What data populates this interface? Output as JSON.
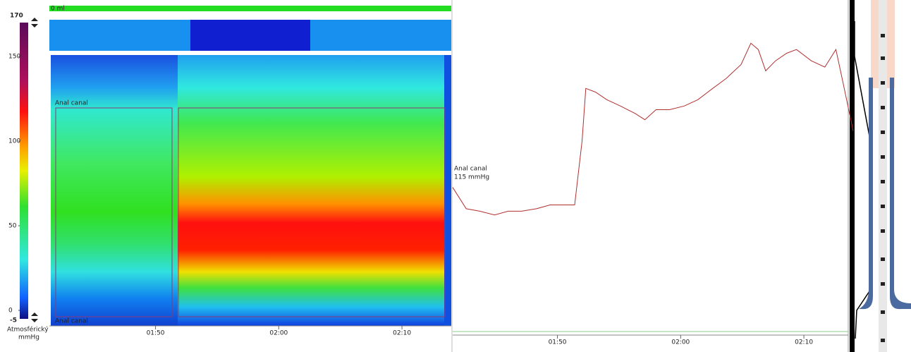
{
  "volume_label": "0 ml",
  "colorbar": {
    "max": 170,
    "min": -5,
    "ticks": [
      0,
      50,
      100,
      150
    ],
    "unit_labels": [
      "Atmosférický",
      "mmHg"
    ]
  },
  "heatmap": {
    "region_labels": [
      "Anal canal",
      "Anal canal"
    ]
  },
  "cursor_labels": [
    "Anal canal",
    "115 mmHg"
  ],
  "chart_data": {
    "type": "line",
    "color": "#b03030",
    "x": [
      101.5,
      102.6,
      103.7,
      104.9,
      106,
      107.1,
      108.3,
      109.4,
      110.6,
      111.4,
      112,
      112.3,
      113.1,
      114,
      115.1,
      116.3,
      117.1,
      118,
      119.1,
      120.3,
      121.4,
      122.6,
      123.7,
      124.9,
      125.7,
      126.3,
      126.9,
      127.7,
      128.6,
      129.4,
      130.6,
      131.7,
      132.6,
      133.1,
      134
    ],
    "values": [
      115,
      98,
      96,
      93,
      96,
      96,
      98,
      101,
      101,
      101,
      152,
      194,
      191,
      185,
      180,
      174,
      169,
      177,
      177,
      180,
      185,
      194,
      202,
      213,
      230,
      225,
      208,
      216,
      222,
      225,
      216,
      211,
      225,
      202,
      160
    ],
    "xlim": [
      101.5,
      134
    ],
    "ylim": [
      0,
      260
    ],
    "xticks": [
      {
        "value": 110,
        "label": "01:50"
      },
      {
        "value": 120,
        "label": "02:00"
      },
      {
        "value": 130,
        "label": "02:10"
      }
    ]
  }
}
